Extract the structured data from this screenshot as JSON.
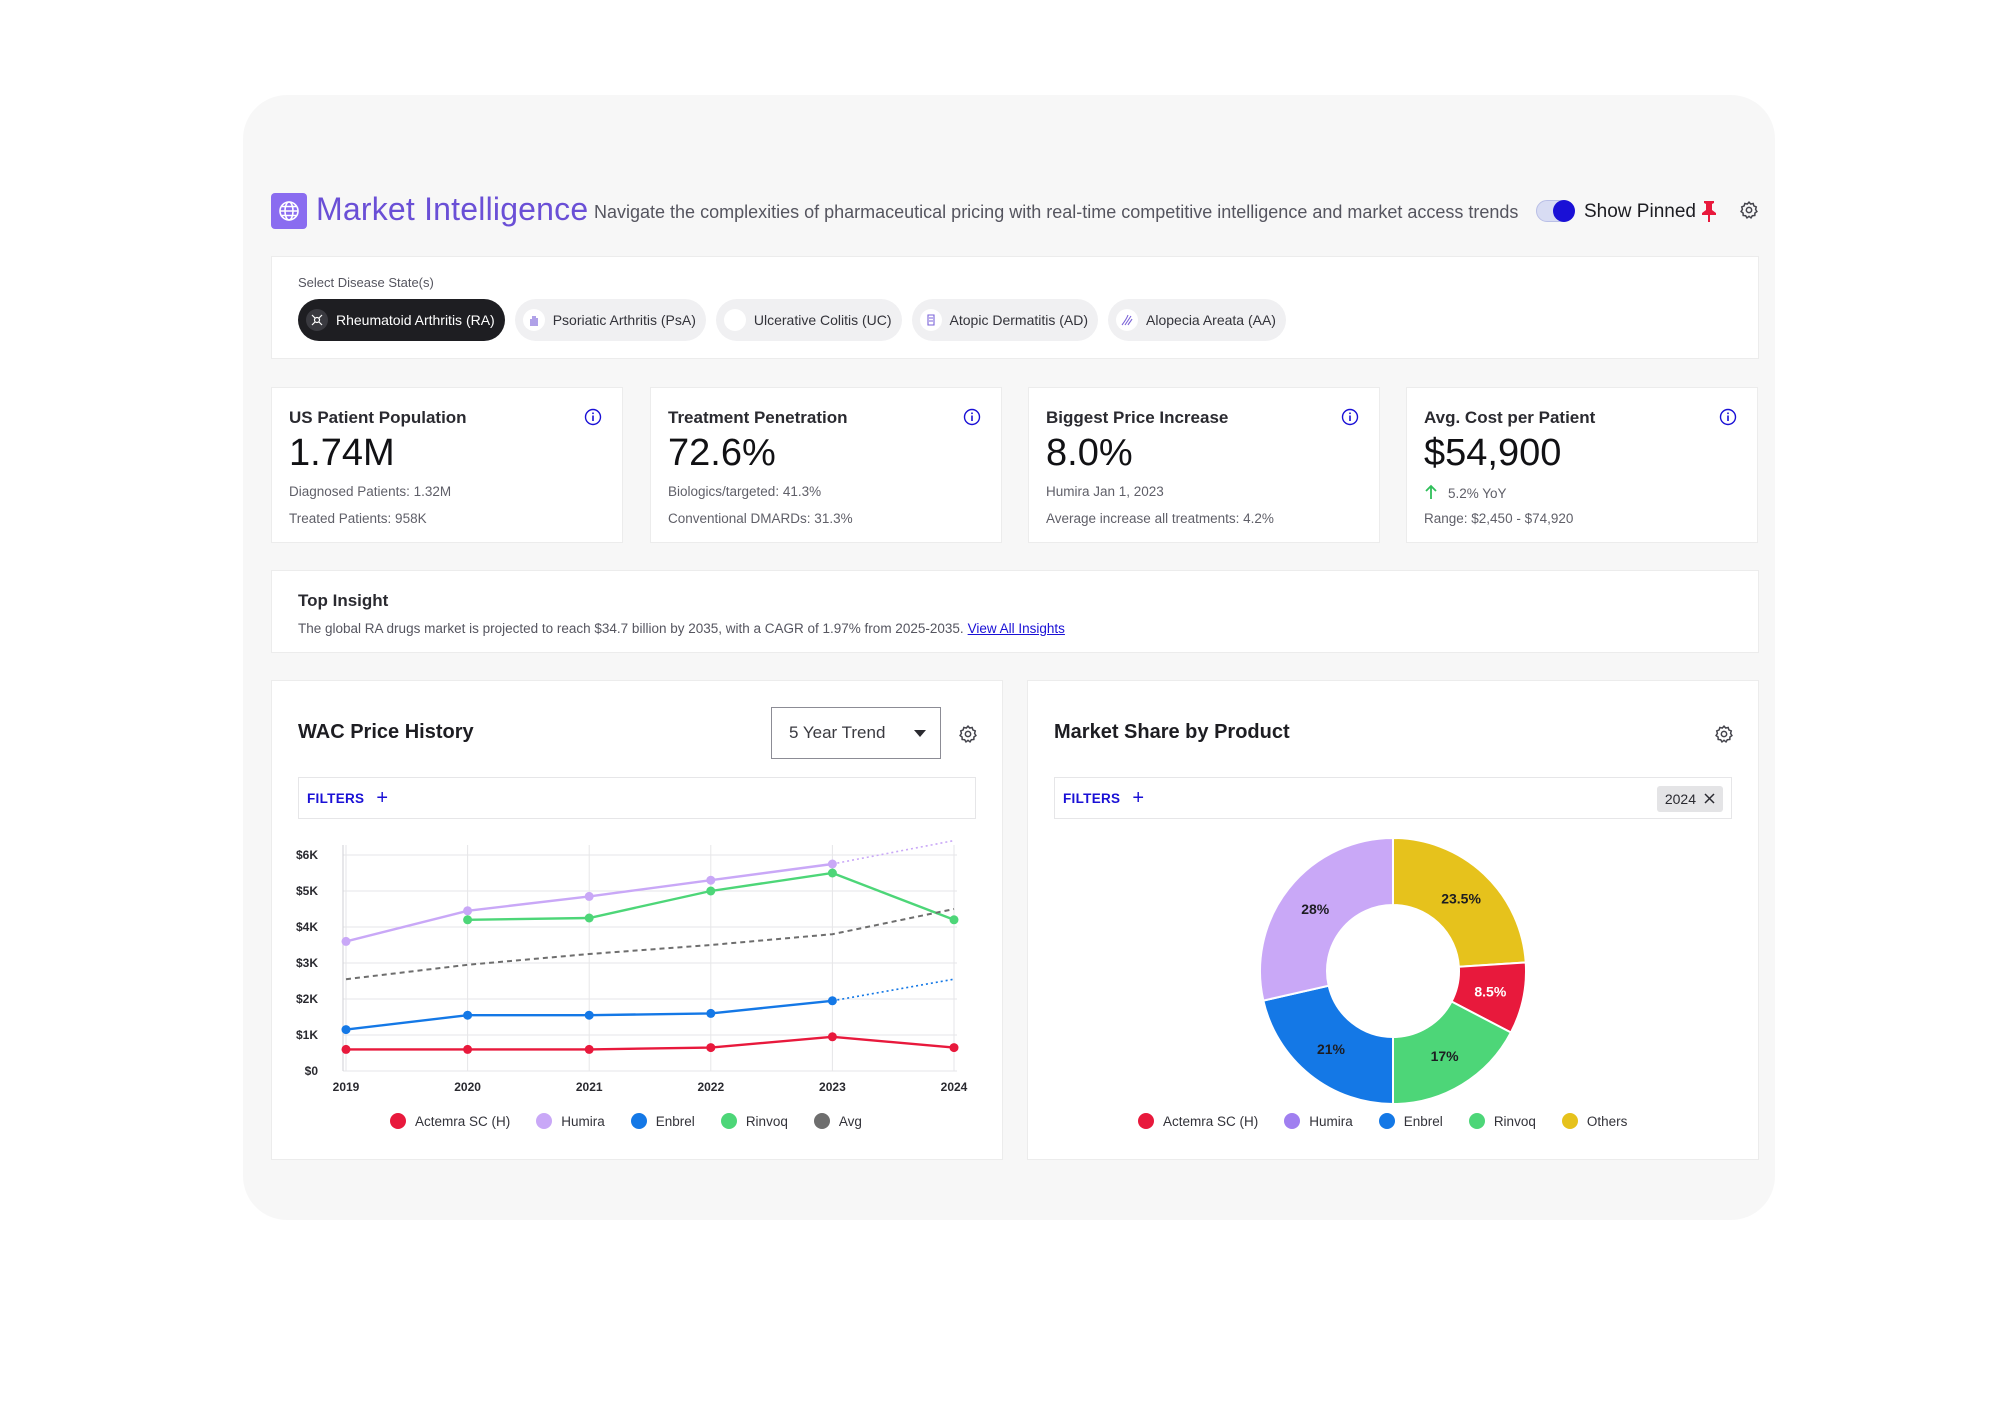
{
  "header": {
    "title": "Market Intelligence",
    "subtitle": "Navigate the complexities of pharmaceutical pricing with real-time competitive intelligence and market access trends",
    "show_pinned_label": "Show Pinned"
  },
  "disease": {
    "label": "Select Disease State(s)",
    "chips": [
      {
        "label": "Rheumatoid Arthritis (RA)",
        "active": true
      },
      {
        "label": "Psoriatic Arthritis (PsA)",
        "active": false
      },
      {
        "label": "Ulcerative Colitis (UC)",
        "active": false
      },
      {
        "label": "Atopic Dermatitis (AD)",
        "active": false
      },
      {
        "label": "Alopecia Areata (AA)",
        "active": false
      }
    ]
  },
  "kpis": [
    {
      "label": "US Patient Population",
      "value": "1.74M",
      "sub1": "Diagnosed Patients: 1.32M",
      "sub2": "Treated Patients: 958K"
    },
    {
      "label": "Treatment Penetration",
      "value": "72.6%",
      "sub1": "Biologics/targeted: 41.3%",
      "sub2": "Conventional DMARDs: 31.3%"
    },
    {
      "label": "Biggest Price Increase",
      "value": "8.0%",
      "sub1": "Humira Jan 1, 2023",
      "sub2": "Average increase all treatments: 4.2%"
    },
    {
      "label": "Avg. Cost per Patient",
      "value": "$54,900",
      "sub1": "5.2% YoY",
      "sub2": "Range: $2,450 - $74,920"
    }
  ],
  "insight": {
    "title": "Top Insight",
    "text": "The global RA drugs market is projected to reach $34.7 billion by 2035, with a CAGR of 1.97% from 2025-2035.",
    "link": "View All Insights"
  },
  "wac": {
    "title": "WAC Price History",
    "trend_select": "5 Year Trend",
    "filters_label": "FILTERS"
  },
  "share": {
    "title": "Market Share by Product",
    "filters_label": "FILTERS",
    "year_chip": "2024"
  },
  "colors": {
    "actemra": "#e8193c",
    "humira": "#c9a8f7",
    "enbrel": "#1478e6",
    "rinvoq": "#4dd678",
    "avg": "#6e6e6e",
    "others": "#e6c21c",
    "humira_legend": "#a07ff0",
    "accent": "#1a10d6",
    "brand": "#6a4fd6"
  },
  "chart_data": [
    {
      "type": "line",
      "title": "WAC Price History",
      "x": [
        2019,
        2020,
        2021,
        2022,
        2023,
        2024
      ],
      "ylim": [
        0,
        6000
      ],
      "yticks": [
        0,
        1000,
        2000,
        3000,
        4000,
        5000,
        6000
      ],
      "ytick_labels": [
        "$0",
        "$1K",
        "$2K",
        "$3K",
        "$4K",
        "$5K",
        "$6K"
      ],
      "series": [
        {
          "name": "Actemra SC (H)",
          "key": "actemra",
          "values": [
            600,
            600,
            600,
            650,
            950,
            650
          ]
        },
        {
          "name": "Humira",
          "key": "humira",
          "values": [
            3600,
            4450,
            4850,
            5300,
            5750,
            null
          ],
          "projection": [
            [
              2023,
              5750
            ],
            [
              2024,
              6400
            ]
          ]
        },
        {
          "name": "Enbrel",
          "key": "enbrel",
          "values": [
            1150,
            1550,
            1550,
            1600,
            1950,
            null
          ],
          "projection": [
            [
              2023,
              1950
            ],
            [
              2024,
              2550
            ]
          ]
        },
        {
          "name": "Rinvoq",
          "key": "rinvoq",
          "values": [
            null,
            4200,
            4250,
            5000,
            5500,
            4200
          ]
        },
        {
          "name": "Avg",
          "key": "avg",
          "dashed": true,
          "values": [
            2550,
            2950,
            3250,
            3500,
            3800,
            4500
          ]
        }
      ]
    },
    {
      "type": "pie",
      "title": "Market Share by Product",
      "donut": true,
      "slices": [
        {
          "name": "Others",
          "key": "others",
          "value": 23.5,
          "label": "23.5%"
        },
        {
          "name": "Actemra SC (H)",
          "key": "actemra",
          "value": 8.5,
          "label": "8.5%"
        },
        {
          "name": "Rinvoq",
          "key": "rinvoq",
          "value": 17,
          "label": "17%"
        },
        {
          "name": "Enbrel",
          "key": "enbrel",
          "value": 21,
          "label": "21%"
        },
        {
          "name": "Humira",
          "key": "humira",
          "value": 28,
          "label": "28%"
        }
      ],
      "legend": [
        {
          "name": "Actemra SC (H)",
          "key": "actemra"
        },
        {
          "name": "Humira",
          "key": "humira_legend"
        },
        {
          "name": "Enbrel",
          "key": "enbrel"
        },
        {
          "name": "Rinvoq",
          "key": "rinvoq"
        },
        {
          "name": "Others",
          "key": "others"
        }
      ]
    }
  ]
}
